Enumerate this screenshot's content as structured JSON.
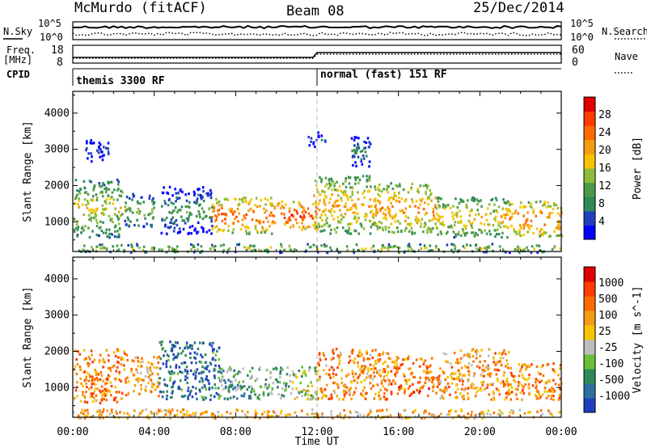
{
  "header": {
    "station": "McMurdo (fitACF)",
    "beam": "Beam 08",
    "date": "25/Dec/2014"
  },
  "top_panels": {
    "nsky_label": "N.Sky",
    "nsky_ticks": [
      "10^5",
      "10^0"
    ],
    "nsearch_label": "N.Search",
    "nsearch_ticks": [
      "10^5",
      "10^0"
    ],
    "freq_label": "Freq.",
    "freq_unit": "[MHz]",
    "freq_ticks": [
      "18",
      "8"
    ],
    "nave_label": "Nave",
    "nave_ticks": [
      "60",
      "0"
    ],
    "cpid_label": "CPID",
    "cpid_modes": [
      "themis 3300 RF",
      "normal (fast) 151 RF"
    ]
  },
  "x_axis": {
    "label": "Time UT",
    "ticks": [
      "00:00",
      "04:00",
      "08:00",
      "12:00",
      "16:00",
      "20:00",
      "00:00"
    ]
  },
  "chart_data": [
    {
      "type": "heatmap",
      "panel": "power",
      "ylabel": "Slant Range [km]",
      "yticks": [
        1000,
        2000,
        3000,
        4000
      ],
      "ylim": [
        180,
        4600
      ],
      "xlim": [
        0,
        24
      ],
      "colorbar_label": "Power [dB]",
      "colorbar_ticks": [
        "28",
        "24",
        "20",
        "16",
        "12",
        "8",
        "4"
      ],
      "colors": [
        "#0000ff",
        "#1f3fbf",
        "#2e8b57",
        "#4a9a4a",
        "#8fbc3a",
        "#f5c400",
        "#f39c12",
        "#ff6a00",
        "#ff3b00",
        "#e00000"
      ],
      "patches": [
        {
          "t0": 0.0,
          "t1": 2.4,
          "r0": 600,
          "r1": 2200,
          "v": 0.55
        },
        {
          "t0": 0.6,
          "t1": 1.8,
          "r0": 2700,
          "r1": 3300,
          "v": 0.2
        },
        {
          "t0": 2.5,
          "t1": 4.0,
          "r0": 900,
          "r1": 1800,
          "v": 0.45
        },
        {
          "t0": 4.3,
          "t1": 6.8,
          "r0": 700,
          "r1": 2000,
          "v": 0.35
        },
        {
          "t0": 6.8,
          "t1": 9.8,
          "r0": 700,
          "r1": 1700,
          "v": 0.78
        },
        {
          "t0": 9.8,
          "t1": 12.0,
          "r0": 800,
          "r1": 1600,
          "v": 0.85
        },
        {
          "t0": 11.8,
          "t1": 14.8,
          "r0": 700,
          "r1": 2300,
          "v": 0.65
        },
        {
          "t0": 14.8,
          "t1": 17.8,
          "r0": 700,
          "r1": 2100,
          "v": 0.7
        },
        {
          "t0": 17.8,
          "t1": 21.2,
          "r0": 600,
          "r1": 1700,
          "v": 0.6
        },
        {
          "t0": 21.2,
          "t1": 24.0,
          "r0": 600,
          "r1": 1600,
          "v": 0.75
        },
        {
          "t0": 11.5,
          "t1": 12.4,
          "r0": 3100,
          "r1": 3500,
          "v": 0.2
        },
        {
          "t0": 13.5,
          "t1": 14.6,
          "r0": 2500,
          "r1": 3400,
          "v": 0.3
        },
        {
          "t0": 0.0,
          "t1": 24.0,
          "r0": 180,
          "r1": 420,
          "v": 0.5
        }
      ]
    },
    {
      "type": "heatmap",
      "panel": "velocity",
      "ylabel": "Slant Range [km]",
      "yticks": [
        1000,
        2000,
        3000,
        4000
      ],
      "ylim": [
        180,
        4600
      ],
      "xlim": [
        0,
        24
      ],
      "colorbar_label": "Velocity [m s^-1]",
      "colorbar_ticks": [
        "1000",
        "500",
        "100",
        "25",
        "-25",
        "-100",
        "-500",
        "-1000"
      ],
      "colors": [
        "#1f3fbf",
        "#2e6fa0",
        "#2e8b57",
        "#6abf3a",
        "#bdbdbd",
        "#f5c400",
        "#f39c12",
        "#ff6a00",
        "#ff3b00",
        "#e00000"
      ],
      "patches": [
        {
          "t0": 0.0,
          "t1": 2.6,
          "r0": 600,
          "r1": 2100,
          "v": 0.7
        },
        {
          "t0": 2.6,
          "t1": 4.2,
          "r0": 800,
          "r1": 1900,
          "v": 0.6
        },
        {
          "t0": 4.2,
          "t1": 7.2,
          "r0": 700,
          "r1": 2300,
          "v": 0.15
        },
        {
          "t0": 7.2,
          "t1": 10.5,
          "r0": 700,
          "r1": 1600,
          "v": 0.3
        },
        {
          "t0": 10.5,
          "t1": 12.0,
          "r0": 700,
          "r1": 1600,
          "v": 0.42
        },
        {
          "t0": 12.0,
          "t1": 15.5,
          "r0": 700,
          "r1": 2100,
          "v": 0.68
        },
        {
          "t0": 15.5,
          "t1": 18.0,
          "r0": 800,
          "r1": 1900,
          "v": 0.72
        },
        {
          "t0": 18.0,
          "t1": 21.5,
          "r0": 700,
          "r1": 2100,
          "v": 0.65
        },
        {
          "t0": 21.5,
          "t1": 24.0,
          "r0": 700,
          "r1": 1700,
          "v": 0.7
        },
        {
          "t0": 0.0,
          "t1": 24.0,
          "r0": 180,
          "r1": 430,
          "v": 0.6
        }
      ]
    }
  ]
}
